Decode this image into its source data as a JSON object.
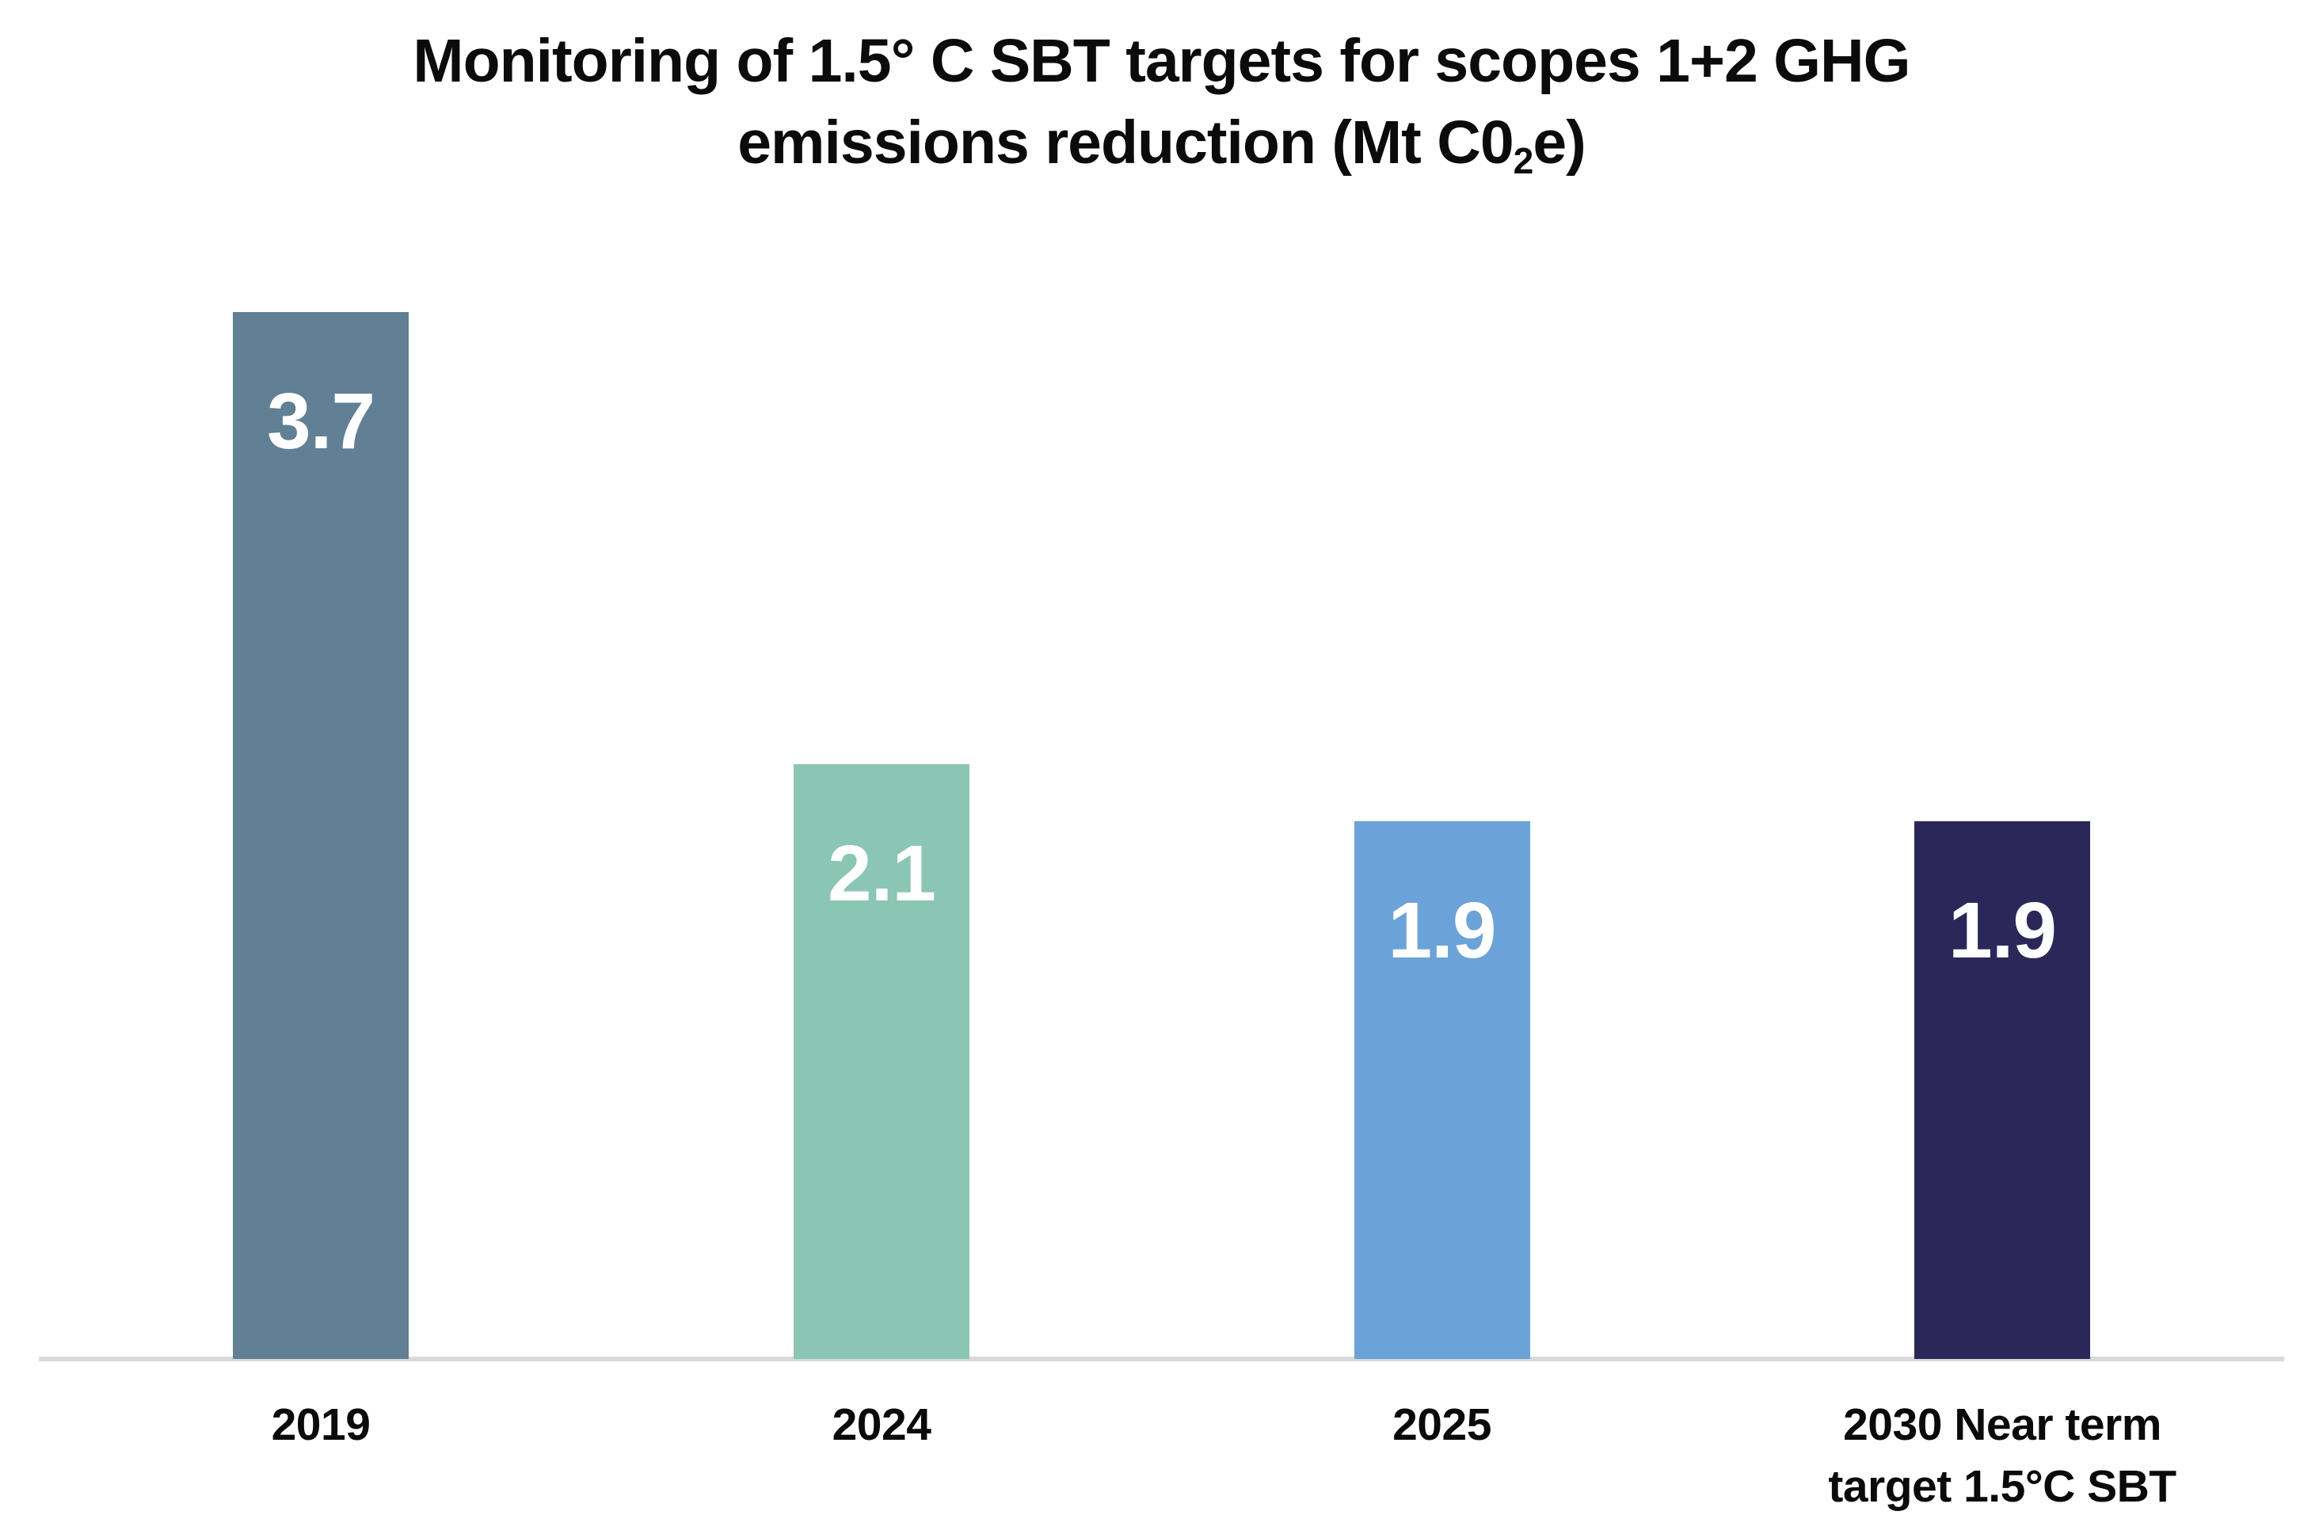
{
  "title": {
    "line1": "Monitoring of 1.5° C SBT targets for scopes 1+2 GHG",
    "line2_prefix": "emissions reduction (Mt C0",
    "line2_sub": "2",
    "line2_suffix": "e)"
  },
  "colors": {
    "background": "#ffffff",
    "title_text": "#0b0b0b",
    "axis_line": "#d9d9d9",
    "value_label": "#ffffff",
    "tick_label": "#0a0a0a"
  },
  "chart_data": {
    "type": "bar",
    "title": "Monitoring of 1.5° C SBT targets for scopes 1+2 GHG emissions reduction (Mt C0₂e)",
    "xlabel": "",
    "ylabel": "",
    "unit": "Mt C0₂e",
    "categories": [
      "2019",
      "2024",
      "2025",
      "2030 Near term target 1.5°C SBT"
    ],
    "category_lines": [
      [
        "2019"
      ],
      [
        "2024"
      ],
      [
        "2025"
      ],
      [
        "2030 Near term",
        "target 1.5°C SBT"
      ]
    ],
    "values": [
      3.7,
      2.1,
      1.9,
      1.9
    ],
    "value_labels": [
      "3.7",
      "2.1",
      "1.9",
      "1.9"
    ],
    "bar_colors": [
      "#617f95",
      "#8bc5b3",
      "#6ba3d8",
      "#2b2859"
    ],
    "ylim": [
      0,
      3.7
    ],
    "grid": false,
    "legend_position": "none",
    "y_axis_visible": false,
    "value_labels_position": "inside-top"
  }
}
